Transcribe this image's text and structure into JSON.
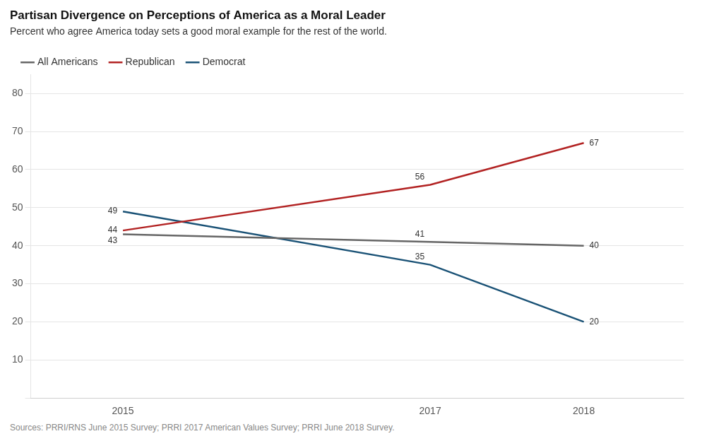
{
  "chart_data": {
    "type": "line",
    "title": "Partisan Divergence on Perceptions of America as a Moral Leader",
    "subtitle": "Percent who agree America today sets a good moral example for the rest of the world.",
    "source": "Sources: PRRI/RNS June 2015 Survey; PRRI 2017 American Values Survey; PRRI June 2018 Survey.",
    "x": [
      2015,
      2017,
      2018
    ],
    "series": [
      {
        "name": "All Americans",
        "color": "#666666",
        "values": [
          43,
          41,
          40
        ]
      },
      {
        "name": "Republican",
        "color": "#b22222",
        "values": [
          44,
          56,
          67
        ]
      },
      {
        "name": "Democrat",
        "color": "#1a5276",
        "values": [
          49,
          35,
          20
        ]
      }
    ],
    "xlim": [
      2014.4,
      2018.65
    ],
    "xticks": [
      2015,
      2017,
      2018
    ],
    "ylim": [
      0,
      85
    ],
    "yticks": [
      {
        "value": 0,
        "label": ""
      },
      10,
      20,
      30,
      40,
      50,
      60,
      70,
      80
    ],
    "grid": "y",
    "legend": "upper left",
    "data_labels": true
  }
}
